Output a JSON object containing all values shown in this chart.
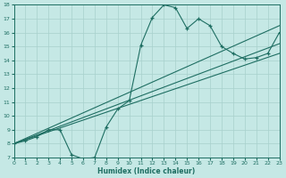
{
  "xlabel": "Humidex (Indice chaleur)",
  "bg_color": "#c5e8e5",
  "line_color": "#1e6e62",
  "grid_color": "#a8d0cc",
  "xlim": [
    0,
    23
  ],
  "ylim": [
    7,
    18
  ],
  "xticks": [
    0,
    1,
    2,
    3,
    4,
    5,
    6,
    7,
    8,
    9,
    10,
    11,
    12,
    13,
    14,
    15,
    16,
    17,
    18,
    19,
    20,
    21,
    22,
    23
  ],
  "yticks": [
    7,
    8,
    9,
    10,
    11,
    12,
    13,
    14,
    15,
    16,
    17,
    18
  ],
  "main_x": [
    0,
    1,
    2,
    3,
    4,
    5,
    6,
    7,
    8,
    9,
    10,
    11,
    12,
    13,
    14,
    15,
    16,
    17,
    18,
    19,
    20,
    21,
    22,
    23
  ],
  "main_y": [
    8.0,
    8.2,
    8.5,
    9.0,
    9.0,
    7.2,
    6.9,
    7.0,
    9.2,
    10.5,
    11.1,
    15.1,
    17.1,
    18.0,
    17.8,
    16.3,
    17.0,
    16.5,
    15.0,
    14.5,
    14.1,
    14.2,
    14.5,
    16.0
  ],
  "trend1_x": [
    0,
    23
  ],
  "trend1_y": [
    8.0,
    16.5
  ],
  "trend2_x": [
    0,
    23
  ],
  "trend2_y": [
    8.0,
    15.2
  ],
  "trend3_x": [
    0,
    23
  ],
  "trend3_y": [
    8.0,
    14.5
  ]
}
